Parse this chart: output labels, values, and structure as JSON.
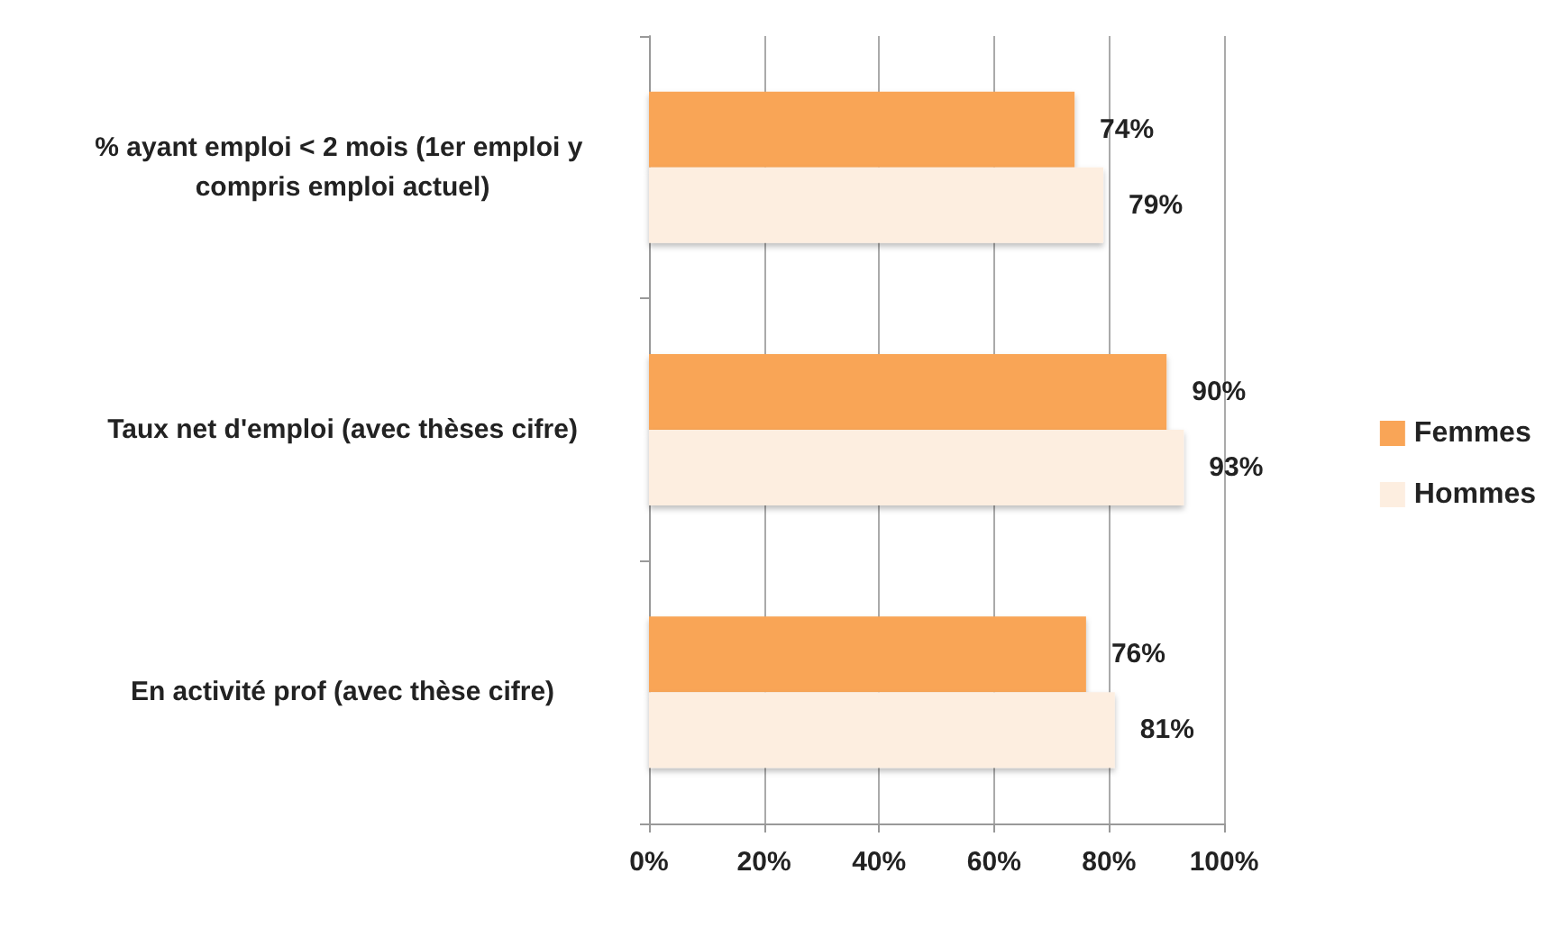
{
  "chart_data": {
    "type": "bar",
    "orientation": "horizontal",
    "categories": [
      "% ayant emploi < 2 mois (1er emploi y compris emploi actuel)",
      "Taux net d'emploi (avec thèses cifre)",
      "En activité prof (avec thèse cifre)"
    ],
    "series": [
      {
        "name": "Femmes",
        "color": "#f9a557",
        "values": [
          74,
          90,
          76
        ],
        "value_labels": [
          "74%",
          "90%",
          "76%"
        ]
      },
      {
        "name": "Hommes",
        "color": "#fdeee0",
        "values": [
          79,
          93,
          81
        ],
        "value_labels": [
          "79%",
          "93%",
          "81%"
        ]
      }
    ],
    "xlim": [
      0,
      100
    ],
    "xticks": [
      {
        "value": 0,
        "label": "0%"
      },
      {
        "value": 20,
        "label": "20%"
      },
      {
        "value": 40,
        "label": "40%"
      },
      {
        "value": 60,
        "label": "60%"
      },
      {
        "value": 80,
        "label": "80%"
      },
      {
        "value": 100,
        "label": "100%"
      }
    ],
    "grid": "x",
    "legend": "right"
  }
}
